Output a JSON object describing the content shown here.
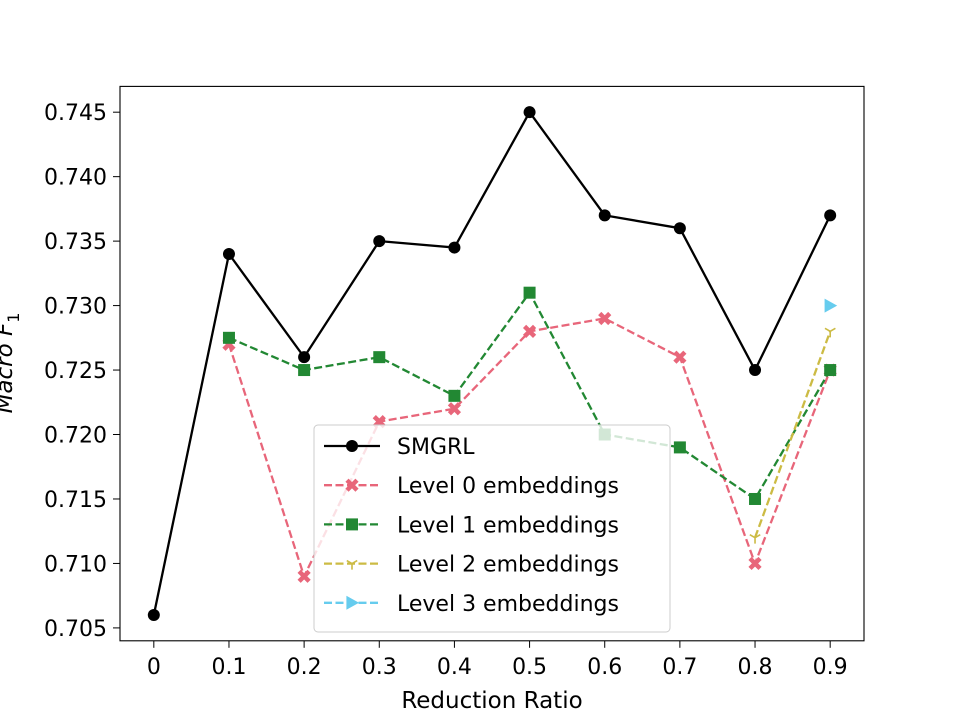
{
  "chart_data": {
    "type": "line",
    "title": "",
    "xlabel": "Reduction Ratio",
    "ylabel": "Macro F",
    "ylabel_subscript": "1",
    "x_ticks": [
      "0",
      "0.1",
      "0.2",
      "0.3",
      "0.4",
      "0.5",
      "0.6",
      "0.7",
      "0.8",
      "0.9"
    ],
    "x_values": [
      0,
      0.1,
      0.2,
      0.3,
      0.4,
      0.5,
      0.6,
      0.7,
      0.8,
      0.9
    ],
    "xlim": [
      -0.045,
      0.945
    ],
    "ylim": [
      0.704,
      0.747
    ],
    "y_ticks": [
      0.705,
      0.71,
      0.715,
      0.72,
      0.725,
      0.73,
      0.735,
      0.74,
      0.745
    ],
    "y_tick_labels": [
      "0.705",
      "0.710",
      "0.715",
      "0.720",
      "0.725",
      "0.730",
      "0.735",
      "0.740",
      "0.745"
    ],
    "grid": false,
    "legend_position": "lower-center",
    "series": [
      {
        "name": "SMGRL",
        "color": "#000000",
        "linestyle": "solid",
        "marker": "circle",
        "x": [
          0,
          0.1,
          0.2,
          0.3,
          0.4,
          0.5,
          0.6,
          0.7,
          0.8,
          0.9
        ],
        "y": [
          0.706,
          0.734,
          0.726,
          0.735,
          0.7345,
          0.745,
          0.737,
          0.736,
          0.725,
          0.737
        ]
      },
      {
        "name": "Level 0 embeddings",
        "color": "#e8667a",
        "linestyle": "dashed",
        "marker": "x-thick",
        "x": [
          0.1,
          0.2,
          0.3,
          0.4,
          0.5,
          0.6,
          0.7,
          0.8,
          0.9
        ],
        "y": [
          0.727,
          0.709,
          0.721,
          0.722,
          0.728,
          0.729,
          0.726,
          0.71,
          0.725
        ]
      },
      {
        "name": "Level 1 embeddings",
        "color": "#228833",
        "linestyle": "dashed",
        "marker": "square",
        "x": [
          0.1,
          0.2,
          0.3,
          0.4,
          0.5,
          0.6,
          0.7,
          0.8,
          0.9
        ],
        "y": [
          0.7275,
          0.725,
          0.726,
          0.723,
          0.731,
          0.72,
          0.719,
          0.715,
          0.725
        ]
      },
      {
        "name": "Level 2 embeddings",
        "color": "#ccbb44",
        "linestyle": "dashed",
        "marker": "tri-down",
        "x": [
          0.8,
          0.9
        ],
        "y": [
          0.712,
          0.728
        ]
      },
      {
        "name": "Level 3 embeddings",
        "color": "#66ccee",
        "linestyle": "dashed",
        "marker": "triangle-right",
        "x": [
          0.9
        ],
        "y": [
          0.73
        ]
      }
    ]
  }
}
